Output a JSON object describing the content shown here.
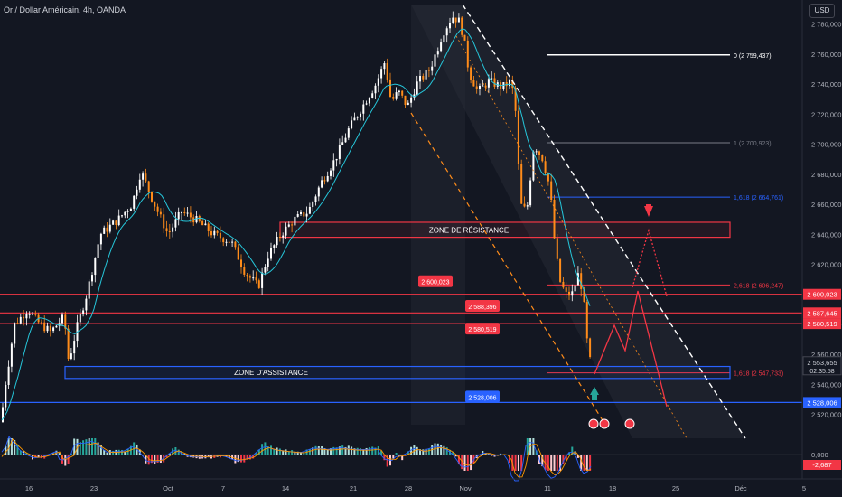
{
  "header": {
    "title": "Or / Dollar Américain, 4h, OANDA",
    "currency_button": "USD"
  },
  "chart_data": {
    "type": "candlestick",
    "title": "Or / Dollar Américain, 4h, OANDA",
    "ylim": [
      2512,
      2790
    ],
    "y_ticks": [
      2520,
      2540,
      2560,
      2580,
      2600,
      2620,
      2640,
      2660,
      2680,
      2700,
      2720,
      2740,
      2760,
      2780
    ],
    "y_tick_labels": [
      "2 520,000",
      "2 540,000",
      "2 560,000",
      "2 580,000",
      "2 600,000",
      "2 620,000",
      "2 640,000",
      "2 660,000",
      "2 680,000",
      "2 700,000",
      "2 720,000",
      "2 740,000",
      "2 760,000",
      "2 780,000"
    ],
    "x_ticks": [
      "16",
      "23",
      "Oct",
      "7",
      "14",
      "21",
      "28",
      "Nov",
      "11",
      "18",
      "25",
      "Déc",
      "5"
    ],
    "path": [
      [
        0,
        2515
      ],
      [
        5,
        2540
      ],
      [
        15,
        2580
      ],
      [
        30,
        2590
      ],
      [
        40,
        2582
      ],
      [
        55,
        2575
      ],
      [
        70,
        2585
      ],
      [
        75,
        2555
      ],
      [
        85,
        2580
      ],
      [
        95,
        2600
      ],
      [
        110,
        2640
      ],
      [
        130,
        2650
      ],
      [
        145,
        2660
      ],
      [
        155,
        2682
      ],
      [
        170,
        2660
      ],
      [
        185,
        2640
      ],
      [
        200,
        2655
      ],
      [
        215,
        2650
      ],
      [
        235,
        2640
      ],
      [
        255,
        2635
      ],
      [
        270,
        2615
      ],
      [
        285,
        2605
      ],
      [
        295,
        2625
      ],
      [
        310,
        2640
      ],
      [
        325,
        2650
      ],
      [
        340,
        2655
      ],
      [
        355,
        2675
      ],
      [
        370,
        2690
      ],
      [
        385,
        2710
      ],
      [
        400,
        2725
      ],
      [
        415,
        2740
      ],
      [
        425,
        2755
      ],
      [
        432,
        2728
      ],
      [
        440,
        2735
      ],
      [
        450,
        2725
      ],
      [
        460,
        2740
      ],
      [
        475,
        2750
      ],
      [
        490,
        2775
      ],
      [
        500,
        2785
      ],
      [
        507,
        2782
      ],
      [
        512,
        2772
      ],
      [
        518,
        2748
      ],
      [
        528,
        2735
      ],
      [
        540,
        2742
      ],
      [
        555,
        2738
      ],
      [
        565,
        2742
      ],
      [
        570,
        2720
      ],
      [
        575,
        2660
      ],
      [
        582,
        2655
      ],
      [
        590,
        2700
      ],
      [
        600,
        2690
      ],
      [
        608,
        2670
      ],
      [
        612,
        2640
      ],
      [
        618,
        2610
      ],
      [
        625,
        2600
      ],
      [
        632,
        2600
      ],
      [
        640,
        2615
      ],
      [
        646,
        2590
      ],
      [
        650,
        2560
      ],
      [
        654,
        2552
      ]
    ],
    "last_price": "2 553,655",
    "countdown": "02:35:58",
    "price_scale_labels": [
      {
        "text": "2 600,023",
        "price": 2600.023,
        "color": "#f23645"
      },
      {
        "text": "2 587,645",
        "price": 2587.645,
        "color": "#f23645"
      },
      {
        "text": "2 580,519",
        "price": 2580.519,
        "color": "#f23645"
      },
      {
        "text": "2 528,006",
        "price": 2528.006,
        "color": "#2962ff"
      }
    ],
    "fib_levels": [
      {
        "label": "0 (2 759,437)",
        "price": 2759.437,
        "color": "#ffffff"
      },
      {
        "label": "1 (2 700,923)",
        "price": 2700.923,
        "color": "#787b86"
      },
      {
        "label": "1,618 (2 664,761)",
        "price": 2664.761,
        "color": "#2962ff"
      },
      {
        "label": "2,618 (2 606,247)",
        "price": 2606.247,
        "color": "#f23645"
      },
      {
        "label": "1,618 (2 547,733)",
        "price": 2547.733,
        "color": "#f23645"
      }
    ],
    "zones": [
      {
        "label": "ZONE DE RÉSISTANCE",
        "low": 2638,
        "high": 2648,
        "color": "#f23645"
      },
      {
        "label": "ZONE D'ASSISTANCE",
        "low": 2544,
        "high": 2552,
        "color": "#2962ff"
      }
    ],
    "level_tags": [
      {
        "text": "2 600,023",
        "price": 2600.023,
        "color": "#f23645"
      },
      {
        "text": "2 588,396",
        "price": 2588.396,
        "color": "#f23645"
      },
      {
        "text": "2 580,519",
        "price": 2580.519,
        "color": "#f23645"
      },
      {
        "text": "2 528,006",
        "price": 2528.006,
        "color": "#2962ff"
      }
    ],
    "oscillator": {
      "zero_label": "0,000",
      "value_label": "-2,687"
    }
  }
}
